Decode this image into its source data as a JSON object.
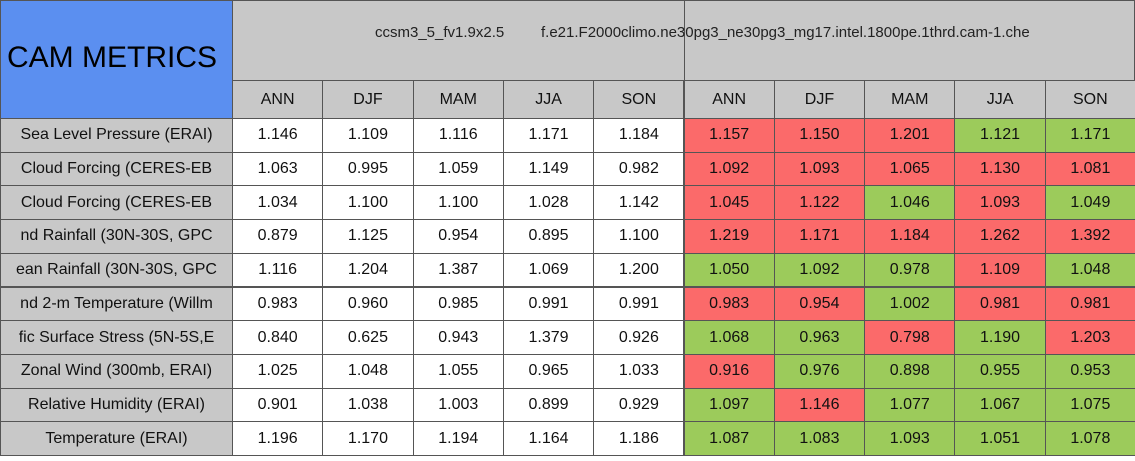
{
  "table": {
    "title": "CAM METRICS",
    "group_headers": [
      "ccsm3_5_fv1.9x2.5",
      "f.e21.F2000climo.ne30pg3_ne30pg3_mg17.intel.1800pe.1thrd.cam-1.che"
    ],
    "columns": [
      "ANN",
      "DJF",
      "MAM",
      "JJA",
      "SON",
      "ANN",
      "DJF",
      "MAM",
      "JJA",
      "SON"
    ],
    "colors": {
      "red": "#fb6a6a",
      "green": "#9ccb5b",
      "white": "#ffffff",
      "label": "#c8c8c8",
      "title": "#5b8ff0"
    },
    "rows": [
      {
        "label": "Sea Level Pressure (ERAI)",
        "values": [
          "1.146",
          "1.109",
          "1.116",
          "1.171",
          "1.184",
          "1.157",
          "1.150",
          "1.201",
          "1.121",
          "1.171"
        ],
        "fills": [
          "white",
          "white",
          "white",
          "white",
          "white",
          "red",
          "red",
          "red",
          "green",
          "green"
        ]
      },
      {
        "label": "Cloud Forcing (CERES-EB",
        "values": [
          "1.063",
          "0.995",
          "1.059",
          "1.149",
          "0.982",
          "1.092",
          "1.093",
          "1.065",
          "1.130",
          "1.081"
        ],
        "fills": [
          "white",
          "white",
          "white",
          "white",
          "white",
          "red",
          "red",
          "red",
          "red",
          "red"
        ]
      },
      {
        "label": "Cloud Forcing (CERES-EB",
        "values": [
          "1.034",
          "1.100",
          "1.100",
          "1.028",
          "1.142",
          "1.045",
          "1.122",
          "1.046",
          "1.093",
          "1.049"
        ],
        "fills": [
          "white",
          "white",
          "white",
          "white",
          "white",
          "red",
          "red",
          "green",
          "red",
          "green"
        ]
      },
      {
        "label": "nd Rainfall (30N-30S, GPC",
        "values": [
          "0.879",
          "1.125",
          "0.954",
          "0.895",
          "1.100",
          "1.219",
          "1.171",
          "1.184",
          "1.262",
          "1.392"
        ],
        "fills": [
          "white",
          "white",
          "white",
          "white",
          "white",
          "red",
          "red",
          "red",
          "red",
          "red"
        ]
      },
      {
        "label": "ean Rainfall (30N-30S, GPC",
        "values": [
          "1.116",
          "1.204",
          "1.387",
          "1.069",
          "1.200",
          "1.050",
          "1.092",
          "0.978",
          "1.109",
          "1.048"
        ],
        "fills": [
          "white",
          "white",
          "white",
          "white",
          "white",
          "green",
          "green",
          "green",
          "red",
          "green"
        ]
      },
      {
        "label": "nd 2-m Temperature (Willm",
        "values": [
          "0.983",
          "0.960",
          "0.985",
          "0.991",
          "0.991",
          "0.983",
          "0.954",
          "1.002",
          "0.981",
          "0.981"
        ],
        "fills": [
          "white",
          "white",
          "white",
          "white",
          "white",
          "red",
          "red",
          "green",
          "red",
          "red"
        ]
      },
      {
        "label": "fic Surface Stress (5N-5S,E",
        "values": [
          "0.840",
          "0.625",
          "0.943",
          "1.379",
          "0.926",
          "1.068",
          "0.963",
          "0.798",
          "1.190",
          "1.203"
        ],
        "fills": [
          "white",
          "white",
          "white",
          "white",
          "white",
          "green",
          "green",
          "red",
          "green",
          "red"
        ]
      },
      {
        "label": "Zonal Wind (300mb, ERAI)",
        "values": [
          "1.025",
          "1.048",
          "1.055",
          "0.965",
          "1.033",
          "0.916",
          "0.976",
          "0.898",
          "0.955",
          "0.953"
        ],
        "fills": [
          "white",
          "white",
          "white",
          "white",
          "white",
          "red",
          "green",
          "green",
          "green",
          "green"
        ]
      },
      {
        "label": "Relative Humidity (ERAI)",
        "values": [
          "0.901",
          "1.038",
          "1.003",
          "0.899",
          "0.929",
          "1.097",
          "1.146",
          "1.077",
          "1.067",
          "1.075"
        ],
        "fills": [
          "white",
          "white",
          "white",
          "white",
          "white",
          "green",
          "red",
          "green",
          "green",
          "green"
        ]
      },
      {
        "label": "Temperature (ERAI)",
        "values": [
          "1.196",
          "1.170",
          "1.194",
          "1.164",
          "1.186",
          "1.087",
          "1.083",
          "1.093",
          "1.051",
          "1.078"
        ],
        "fills": [
          "white",
          "white",
          "white",
          "white",
          "white",
          "green",
          "green",
          "green",
          "green",
          "green"
        ]
      }
    ]
  }
}
